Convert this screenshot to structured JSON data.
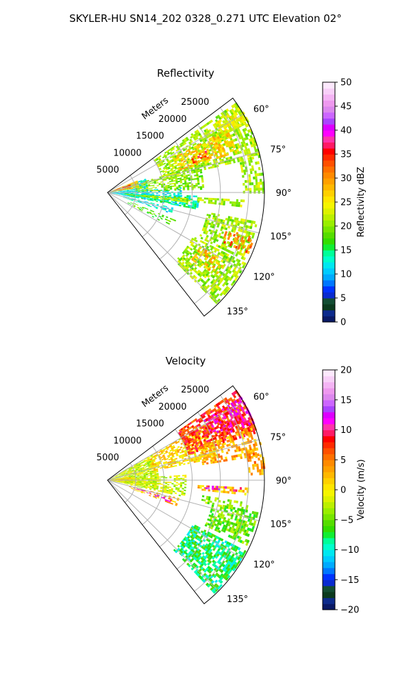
{
  "figure": {
    "suptitle": "SKYLER-HU  SN14_202  0328_0.271 UTC Elevation 02°"
  },
  "chart_data": [
    {
      "type": "heatmap",
      "title": "Reflectivity",
      "radial_label": "Meters",
      "range_ticks": [
        "5000",
        "10000",
        "15000",
        "20000",
        "25000"
      ],
      "range_values": [
        5000,
        10000,
        15000,
        20000,
        25000
      ],
      "rmax": 27800,
      "angle_ticks": [
        "60°",
        "75°",
        "90°",
        "105°",
        "120°",
        "135°"
      ],
      "angle_values": [
        60,
        75,
        90,
        105,
        120,
        135
      ],
      "theta_range": [
        53,
        142
      ],
      "grid": true,
      "colorbar": {
        "label": "Reflectivity dBZ",
        "ticks": [
          "0",
          "5",
          "10",
          "15",
          "20",
          "25",
          "30",
          "35",
          "40",
          "45",
          "50"
        ],
        "range": [
          0,
          50
        ],
        "colors": [
          "#0a1a66",
          "#0d2b8c",
          "#0b3a1e",
          "#134d33",
          "#0a2bd0",
          "#0033ff",
          "#0077ff",
          "#00aaff",
          "#00ccff",
          "#00e8f0",
          "#00ffcc",
          "#00ff99",
          "#11ee33",
          "#33dd00",
          "#55dd00",
          "#77e600",
          "#99ee00",
          "#bbf000",
          "#ddf200",
          "#f5f500",
          "#ffe600",
          "#ffd000",
          "#ffb800",
          "#ffa000",
          "#ff8a00",
          "#ff7000",
          "#ff5000",
          "#ff2a00",
          "#ff0000",
          "#ff1a66",
          "#ff33aa",
          "#ff00ff",
          "#dd00ff",
          "#aa44ff",
          "#cc66ff",
          "#dd88ee",
          "#ee99ee",
          "#f4b4f4",
          "#f8d0f8",
          "#fce8fc"
        ]
      },
      "echo_regions": [
        {
          "az": [
            70,
            100
          ],
          "r": [
            0,
            7000
          ],
          "value": 12,
          "density": 0.72
        },
        {
          "az": [
            68,
            82
          ],
          "r": [
            0,
            5500
          ],
          "value": 27,
          "density": 0.85
        },
        {
          "az": [
            70,
            78
          ],
          "r": [
            500,
            4200
          ],
          "value": 34,
          "density": 0.6
        },
        {
          "az": [
            86,
            100
          ],
          "r": [
            1000,
            13000
          ],
          "value": 12,
          "density": 0.45
        },
        {
          "az": [
            92,
            100
          ],
          "r": [
            3000,
            16000
          ],
          "value": 14,
          "density": 0.55
        },
        {
          "az": [
            94,
            97
          ],
          "r": [
            3000,
            14500
          ],
          "value": 21,
          "density": 0.7
        },
        {
          "az": [
            103,
            108
          ],
          "r": [
            2500,
            12000
          ],
          "value": 12,
          "density": 0.5
        },
        {
          "az": [
            112,
            118
          ],
          "r": [
            4000,
            13000
          ],
          "value": 18,
          "density": 0.35
        },
        {
          "az": [
            73,
            88
          ],
          "r": [
            5000,
            17000
          ],
          "value": 20,
          "density": 0.55
        },
        {
          "az": [
            55,
            76
          ],
          "r": [
            10000,
            27800
          ],
          "value": 21,
          "density": 0.6
        },
        {
          "az": [
            62,
            72
          ],
          "r": [
            13000,
            24000
          ],
          "value": 27,
          "density": 0.55
        },
        {
          "az": [
            67,
            71
          ],
          "r": [
            16000,
            19000
          ],
          "value": 34,
          "density": 0.5
        },
        {
          "az": [
            57,
            63
          ],
          "r": [
            22000,
            27800
          ],
          "value": 24,
          "density": 0.6
        },
        {
          "az": [
            75,
            90
          ],
          "r": [
            24000,
            27800
          ],
          "value": 21,
          "density": 0.5
        },
        {
          "az": [
            101,
            116
          ],
          "r": [
            18000,
            27000
          ],
          "value": 21,
          "density": 0.6
        },
        {
          "az": [
            107,
            113
          ],
          "r": [
            22000,
            27000
          ],
          "value": 31,
          "density": 0.35
        },
        {
          "az": [
            117,
            135
          ],
          "r": [
            17000,
            27500
          ],
          "value": 21,
          "density": 0.65
        },
        {
          "az": [
            120,
            128
          ],
          "r": [
            19000,
            24000
          ],
          "value": 28,
          "density": 0.4
        },
        {
          "az": [
            93,
            96
          ],
          "r": [
            16000,
            24000
          ],
          "value": 21,
          "density": 0.55
        }
      ]
    },
    {
      "type": "heatmap",
      "title": "Velocity",
      "radial_label": "Meters",
      "range_ticks": [
        "5000",
        "10000",
        "15000",
        "20000",
        "25000"
      ],
      "range_values": [
        5000,
        10000,
        15000,
        20000,
        25000
      ],
      "rmax": 27800,
      "angle_ticks": [
        "60°",
        "75°",
        "90°",
        "105°",
        "120°",
        "135°"
      ],
      "angle_values": [
        60,
        75,
        90,
        105,
        120,
        135
      ],
      "theta_range": [
        53,
        142
      ],
      "grid": true,
      "colorbar": {
        "label": "Velocity (m/s)",
        "ticks": [
          "−20",
          "−15",
          "−10",
          "−5",
          "0",
          "5",
          "10",
          "15",
          "20"
        ],
        "range": [
          -20,
          20
        ],
        "colors": [
          "#0a1a66",
          "#0d2b8c",
          "#0b3a1e",
          "#134d33",
          "#0a2bd0",
          "#0033ff",
          "#0077ff",
          "#00aaff",
          "#00ccff",
          "#00e8f0",
          "#00ffcc",
          "#00ff99",
          "#11ee33",
          "#33dd00",
          "#55dd00",
          "#77e600",
          "#99ee00",
          "#bbf000",
          "#ddf200",
          "#f5f500",
          "#ffe600",
          "#ffd000",
          "#ffb800",
          "#ffa000",
          "#ff8a00",
          "#ff7000",
          "#ff5000",
          "#ff2a00",
          "#ff0000",
          "#ff1a66",
          "#ff33aa",
          "#ff00ff",
          "#dd00ff",
          "#aa44ff",
          "#cc66ff",
          "#dd88ee",
          "#ee99ee",
          "#f4b4f4",
          "#f8d0f8",
          "#fce8fc"
        ]
      },
      "echo_regions": [
        {
          "az": [
            60,
            100
          ],
          "r": [
            0,
            9000
          ],
          "value": -2,
          "density": 0.8
        },
        {
          "az": [
            82,
            98
          ],
          "r": [
            0,
            4500
          ],
          "value": 1,
          "density": 0.75
        },
        {
          "az": [
            86,
            102
          ],
          "r": [
            3000,
            14000
          ],
          "value": -2,
          "density": 0.55
        },
        {
          "az": [
            60,
            78
          ],
          "r": [
            8000,
            20000
          ],
          "value": 1,
          "density": 0.6
        },
        {
          "az": [
            55,
            72
          ],
          "r": [
            15000,
            27800
          ],
          "value": 7,
          "density": 0.7
        },
        {
          "az": [
            58,
            68
          ],
          "r": [
            20000,
            27800
          ],
          "value": 10,
          "density": 0.6
        },
        {
          "az": [
            70,
            80
          ],
          "r": [
            17000,
            27000
          ],
          "value": 3,
          "density": 0.5
        },
        {
          "az": [
            76,
            88
          ],
          "r": [
            25000,
            27800
          ],
          "value": 4,
          "density": 0.5
        },
        {
          "az": [
            99,
            103
          ],
          "r": [
            17000,
            26000
          ],
          "value": -4,
          "density": 0.45
        },
        {
          "az": [
            102,
            115
          ],
          "r": [
            19000,
            27000
          ],
          "value": -5,
          "density": 0.6
        },
        {
          "az": [
            117,
            136
          ],
          "r": [
            17000,
            27500
          ],
          "value": -8,
          "density": 0.7
        },
        {
          "az": [
            104,
            110
          ],
          "r": [
            4000,
            13000
          ],
          "value": 3,
          "density": 0.4
        },
        {
          "az": [
            106,
            109
          ],
          "r": [
            5000,
            12000
          ],
          "value": 12,
          "density": 0.35
        },
        {
          "az": [
            93,
            96
          ],
          "r": [
            16000,
            25000
          ],
          "value": 2,
          "density": 0.55
        },
        {
          "az": [
            93,
            95
          ],
          "r": [
            17000,
            24000
          ],
          "value": 12,
          "density": 0.35
        }
      ]
    }
  ]
}
